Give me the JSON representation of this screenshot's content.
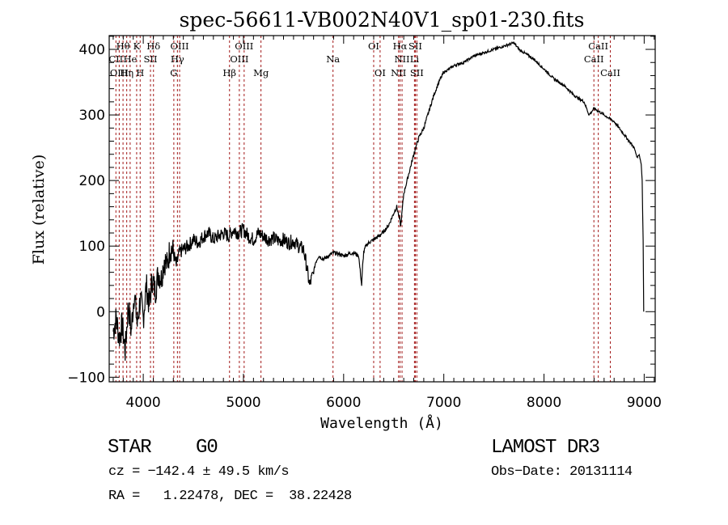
{
  "chart_data": {
    "type": "line",
    "title": "spec-56611-VB002N40V1_sp01-230.fits",
    "xlabel": "Wavelength (Å)",
    "ylabel": "Flux (relative)",
    "xlim": [
      3660,
      9110
    ],
    "ylim": [
      -107,
      421
    ],
    "x_ticks": [
      4000,
      5000,
      6000,
      7000,
      8000,
      9000
    ],
    "x_tick_labels": [
      "4000",
      "5000",
      "6000",
      "7000",
      "8000",
      "9000"
    ],
    "y_ticks": [
      -100,
      0,
      100,
      200,
      300,
      400
    ],
    "y_tick_labels": [
      "-100",
      "0",
      "100",
      "200",
      "300",
      "400"
    ],
    "grid": false,
    "line_color": "#000000",
    "marker_color": "#a31a1a",
    "series": [
      {
        "name": "spectrum",
        "x": [
          3700,
          3730,
          3760,
          3790,
          3820,
          3850,
          3880,
          3910,
          3940,
          3970,
          4000,
          4030,
          4060,
          4090,
          4120,
          4150,
          4180,
          4210,
          4240,
          4270,
          4300,
          4330,
          4360,
          4400,
          4450,
          4500,
          4550,
          4600,
          4650,
          4700,
          4750,
          4800,
          4850,
          4900,
          4950,
          5000,
          5050,
          5100,
          5150,
          5200,
          5250,
          5300,
          5350,
          5400,
          5450,
          5500,
          5550,
          5600,
          5630,
          5660,
          5680,
          5700,
          5720,
          5750,
          5800,
          5850,
          5900,
          5950,
          6000,
          6050,
          6100,
          6150,
          6180,
          6190,
          6200,
          6220,
          6250,
          6300,
          6350,
          6400,
          6450,
          6500,
          6530,
          6560,
          6570,
          6600,
          6650,
          6700,
          6750,
          6800,
          6850,
          6900,
          6950,
          7000,
          7050,
          7100,
          7150,
          7200,
          7300,
          7400,
          7500,
          7600,
          7700,
          7750,
          7800,
          7850,
          7900,
          8000,
          8100,
          8200,
          8300,
          8400,
          8450,
          8500,
          8550,
          8600,
          8650,
          8700,
          8750,
          8800,
          8850,
          8900,
          8930,
          8950,
          8970,
          8980,
          8985,
          8990,
          8995
        ],
        "y": [
          -30,
          -10,
          -40,
          -20,
          -60,
          10,
          -30,
          30,
          -20,
          20,
          -10,
          40,
          10,
          50,
          30,
          60,
          50,
          80,
          70,
          100,
          90,
          70,
          90,
          95,
          100,
          110,
          105,
          115,
          120,
          110,
          115,
          120,
          115,
          125,
          120,
          125,
          115,
          110,
          120,
          115,
          110,
          112,
          108,
          110,
          105,
          108,
          100,
          95,
          70,
          40,
          50,
          60,
          75,
          85,
          80,
          85,
          90,
          88,
          85,
          88,
          90,
          85,
          40,
          70,
          90,
          100,
          105,
          110,
          115,
          122,
          132,
          150,
          160,
          140,
          130,
          180,
          210,
          240,
          265,
          280,
          305,
          330,
          350,
          365,
          370,
          375,
          378,
          380,
          390,
          395,
          400,
          405,
          410,
          400,
          395,
          390,
          385,
          370,
          355,
          345,
          330,
          320,
          300,
          310,
          305,
          300,
          295,
          290,
          280,
          270,
          260,
          250,
          235,
          240,
          225,
          200,
          150,
          110,
          0
        ]
      }
    ],
    "lines": [
      {
        "name": "CII",
        "wl": 3727,
        "row": 2
      },
      {
        "name": "OIII",
        "wl": 3760,
        "row": 3
      },
      {
        "name": "Hθ",
        "wl": 3798,
        "row": 1
      },
      {
        "name": "Hη",
        "wl": 3835,
        "row": 3
      },
      {
        "name": "He",
        "wl": 3869,
        "row": 2
      },
      {
        "name": "K",
        "wl": 3934,
        "row": 1
      },
      {
        "name": "H",
        "wl": 3969,
        "row": 3
      },
      {
        "name": "SII",
        "wl": 4072,
        "row": 2
      },
      {
        "name": "Hδ",
        "wl": 4102,
        "row": 1
      },
      {
        "name": "G",
        "wl": 4305,
        "row": 3
      },
      {
        "name": "Hγ",
        "wl": 4341,
        "row": 2
      },
      {
        "name": "OIII",
        "wl": 4363,
        "row": 1
      },
      {
        "name": "Hβ",
        "wl": 4861,
        "row": 3
      },
      {
        "name": "OIII",
        "wl": 4959,
        "row": 2
      },
      {
        "name": "OIII",
        "wl": 5007,
        "row": 1
      },
      {
        "name": "Mg",
        "wl": 5175,
        "row": 3
      },
      {
        "name": "Na",
        "wl": 5894,
        "row": 2
      },
      {
        "name": "OI",
        "wl": 6300,
        "row": 1
      },
      {
        "name": "OI",
        "wl": 6364,
        "row": 3
      },
      {
        "name": "NII",
        "wl": 6548,
        "row": 3
      },
      {
        "name": "Hα",
        "wl": 6563,
        "row": 1
      },
      {
        "name": "NII",
        "wl": 6583,
        "row": 2
      },
      {
        "name": "Li",
        "wl": 6707,
        "row": 2
      },
      {
        "name": "SII",
        "wl": 6716,
        "row": 1
      },
      {
        "name": "SII",
        "wl": 6731,
        "row": 3
      },
      {
        "name": "CaII",
        "wl": 8498,
        "row": 2
      },
      {
        "name": "CaII",
        "wl": 8542,
        "row": 1
      },
      {
        "name": "CaII",
        "wl": 8662,
        "row": 3
      }
    ]
  },
  "info": {
    "class": "STAR",
    "subclass": "G0",
    "survey": "LAMOST DR3",
    "cz": "cz = −142.4 ± 49.5 km/s",
    "obs_date": "Obs−Date: 20131114",
    "coords": "RA =   1.22478, DEC =  38.22428"
  }
}
